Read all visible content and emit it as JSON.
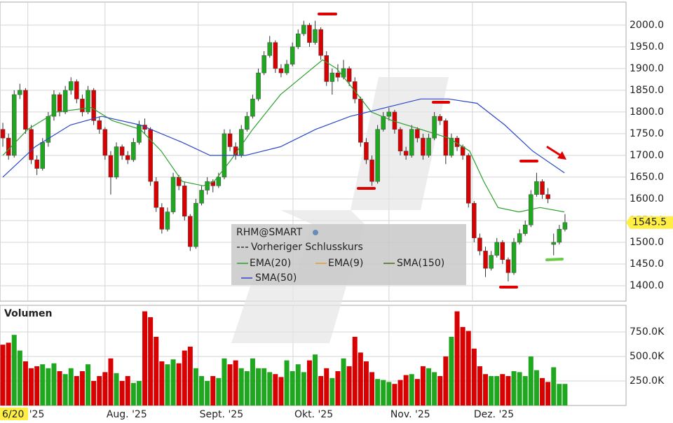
{
  "chart_data": [
    {
      "type": "candlestick",
      "xlim": [
        -0.5,
        109.75
      ],
      "ylim": [
        1364.5,
        2053
      ],
      "yticks": [
        {
          "value": 1400,
          "label": "1400.0"
        },
        {
          "value": 1450,
          "label": "1450.0"
        },
        {
          "value": 1500,
          "label": "1500.0"
        },
        {
          "value": 1550,
          "label": "1550.0"
        },
        {
          "value": 1600,
          "label": "1600.0"
        },
        {
          "value": 1650,
          "label": "1650.0"
        },
        {
          "value": 1700,
          "label": "1700.0"
        },
        {
          "value": 1750,
          "label": "1750.0"
        },
        {
          "value": 1800,
          "label": "1800.0"
        },
        {
          "value": 1850,
          "label": "1850.0"
        },
        {
          "value": 1900,
          "label": "1900.0"
        },
        {
          "value": 1950,
          "label": "1950.0"
        },
        {
          "value": 2000,
          "label": "2000.0"
        }
      ],
      "xticks": [
        {
          "value": 4.4,
          "label": "'25"
        },
        {
          "value": 18,
          "label": "Aug. '25"
        },
        {
          "value": 34.4,
          "label": "Sept. '25"
        },
        {
          "value": 51.1,
          "label": "Okt. '25"
        },
        {
          "value": 68,
          "label": "Nov. '25"
        },
        {
          "value": 82.7,
          "label": "Dez. '25"
        }
      ],
      "cursor_label": "6/20",
      "grid": true,
      "series": [
        {
          "name": "RHM@SMART",
          "up_color": "#1fa81f",
          "down_color": "#d80000",
          "values": [
            [
              1760,
              1775,
              1720,
              1740
            ],
            [
              1740,
              1750,
              1690,
              1700
            ],
            [
              1700,
              1850,
              1695,
              1840
            ],
            [
              1840,
              1865,
              1830,
              1850
            ],
            [
              1850,
              1855,
              1750,
              1760
            ],
            [
              1760,
              1770,
              1680,
              1690
            ],
            [
              1690,
              1700,
              1655,
              1670
            ],
            [
              1670,
              1740,
              1665,
              1730
            ],
            [
              1730,
              1800,
              1720,
              1790
            ],
            [
              1790,
              1850,
              1780,
              1840
            ],
            [
              1840,
              1845,
              1790,
              1800
            ],
            [
              1800,
              1860,
              1795,
              1850
            ],
            [
              1850,
              1880,
              1840,
              1870
            ],
            [
              1870,
              1875,
              1820,
              1830
            ],
            [
              1830,
              1840,
              1790,
              1800
            ],
            [
              1800,
              1860,
              1795,
              1850
            ],
            [
              1850,
              1855,
              1770,
              1780
            ],
            [
              1780,
              1790,
              1750,
              1760
            ],
            [
              1760,
              1765,
              1690,
              1700
            ],
            [
              1700,
              1710,
              1610,
              1650
            ],
            [
              1650,
              1730,
              1645,
              1720
            ],
            [
              1720,
              1725,
              1690,
              1700
            ],
            [
              1700,
              1710,
              1680,
              1690
            ],
            [
              1690,
              1740,
              1685,
              1730
            ],
            [
              1730,
              1780,
              1725,
              1770
            ],
            [
              1770,
              1785,
              1750,
              1760
            ],
            [
              1760,
              1765,
              1630,
              1640
            ],
            [
              1640,
              1650,
              1570,
              1580
            ],
            [
              1580,
              1590,
              1520,
              1530
            ],
            [
              1530,
              1580,
              1525,
              1570
            ],
            [
              1570,
              1660,
              1565,
              1650
            ],
            [
              1650,
              1655,
              1620,
              1630
            ],
            [
              1630,
              1640,
              1550,
              1560
            ],
            [
              1560,
              1565,
              1480,
              1490
            ],
            [
              1490,
              1600,
              1485,
              1590
            ],
            [
              1590,
              1630,
              1585,
              1620
            ],
            [
              1620,
              1650,
              1610,
              1640
            ],
            [
              1640,
              1645,
              1615,
              1630
            ],
            [
              1630,
              1660,
              1625,
              1650
            ],
            [
              1650,
              1760,
              1645,
              1750
            ],
            [
              1750,
              1760,
              1710,
              1720
            ],
            [
              1720,
              1730,
              1690,
              1700
            ],
            [
              1700,
              1770,
              1695,
              1760
            ],
            [
              1760,
              1800,
              1755,
              1790
            ],
            [
              1790,
              1840,
              1785,
              1830
            ],
            [
              1830,
              1900,
              1825,
              1890
            ],
            [
              1890,
              1940,
              1885,
              1930
            ],
            [
              1930,
              1975,
              1925,
              1960
            ],
            [
              1960,
              1965,
              1890,
              1900
            ],
            [
              1900,
              1910,
              1880,
              1890
            ],
            [
              1890,
              1920,
              1885,
              1910
            ],
            [
              1910,
              1960,
              1905,
              1950
            ],
            [
              1950,
              1990,
              1945,
              1980
            ],
            [
              1980,
              2010,
              1975,
              2000
            ],
            [
              2000,
              2005,
              1950,
              1960
            ],
            [
              1960,
              2010,
              1955,
              1990
            ],
            [
              1990,
              1995,
              1920,
              1930
            ],
            [
              1930,
              1940,
              1860,
              1870
            ],
            [
              1870,
              1900,
              1840,
              1890
            ],
            [
              1890,
              1910,
              1870,
              1880
            ],
            [
              1880,
              1920,
              1875,
              1900
            ],
            [
              1900,
              1905,
              1860,
              1870
            ],
            [
              1870,
              1880,
              1820,
              1830
            ],
            [
              1830,
              1835,
              1720,
              1730
            ],
            [
              1730,
              1740,
              1680,
              1690
            ],
            [
              1690,
              1700,
              1630,
              1640
            ],
            [
              1640,
              1770,
              1635,
              1760
            ],
            [
              1760,
              1800,
              1755,
              1790
            ],
            [
              1790,
              1810,
              1780,
              1800
            ],
            [
              1800,
              1805,
              1750,
              1760
            ],
            [
              1760,
              1765,
              1700,
              1710
            ],
            [
              1710,
              1720,
              1690,
              1700
            ],
            [
              1700,
              1770,
              1695,
              1760
            ],
            [
              1760,
              1765,
              1730,
              1740
            ],
            [
              1740,
              1750,
              1690,
              1700
            ],
            [
              1700,
              1750,
              1695,
              1740
            ],
            [
              1740,
              1800,
              1735,
              1790
            ],
            [
              1790,
              1795,
              1770,
              1780
            ],
            [
              1780,
              1785,
              1680,
              1700
            ],
            [
              1700,
              1750,
              1695,
              1740
            ],
            [
              1740,
              1745,
              1710,
              1720
            ],
            [
              1720,
              1725,
              1690,
              1700
            ],
            [
              1700,
              1705,
              1580,
              1590
            ],
            [
              1590,
              1595,
              1500,
              1510
            ],
            [
              1510,
              1520,
              1470,
              1480
            ],
            [
              1480,
              1490,
              1420,
              1440
            ],
            [
              1440,
              1480,
              1435,
              1470
            ],
            [
              1470,
              1510,
              1465,
              1500
            ],
            [
              1500,
              1505,
              1450,
              1460
            ],
            [
              1460,
              1465,
              1410,
              1430
            ],
            [
              1430,
              1510,
              1425,
              1500
            ],
            [
              1500,
              1530,
              1495,
              1520
            ],
            [
              1520,
              1550,
              1515,
              1540
            ],
            [
              1540,
              1620,
              1535,
              1610
            ],
            [
              1610,
              1660,
              1605,
              1640
            ],
            [
              1640,
              1645,
              1600,
              1610
            ],
            [
              1610,
              1625,
              1590,
              1600
            ],
            [
              1495,
              1520,
              1470,
              1500
            ],
            [
              1500,
              1540,
              1495,
              1530
            ],
            [
              1530,
              1565,
              1525,
              1545.5
            ]
          ]
        },
        {
          "name": "EMA(20)",
          "color": "#2ca02c",
          "x": [
            0,
            4.4,
            9.4,
            15.6,
            19.3,
            24.2,
            27.9,
            31.6,
            35.3,
            37.2,
            40.2,
            44,
            48.9,
            52.6,
            56.3,
            58.8,
            62.5,
            64.9,
            68.6,
            73.6,
            78.5,
            82.2,
            84.7,
            87.2,
            90.9,
            94.6,
            98.9
          ],
          "values": [
            1700,
            1760,
            1800,
            1810,
            1780,
            1760,
            1710,
            1640,
            1630,
            1640,
            1690,
            1760,
            1840,
            1880,
            1920,
            1900,
            1840,
            1800,
            1780,
            1760,
            1740,
            1710,
            1640,
            1580,
            1570,
            1580,
            1570
          ]
        },
        {
          "name": "SMA(50)",
          "color": "#2948c8",
          "x": [
            0,
            5.7,
            11.9,
            17.4,
            24.2,
            31.6,
            36.5,
            42.7,
            48.9,
            55.1,
            61.2,
            67.4,
            73.6,
            78.5,
            83.5,
            88.4,
            93.3,
            98.9
          ],
          "values": [
            1650,
            1720,
            1770,
            1790,
            1770,
            1730,
            1700,
            1700,
            1720,
            1760,
            1790,
            1810,
            1830,
            1830,
            1820,
            1770,
            1710,
            1660
          ]
        }
      ],
      "legend_extra": [
        {
          "name": "Vorheriger Schlusskurs",
          "color": "#333333"
        },
        {
          "name": "EMA(9)",
          "color": "#e0a030"
        },
        {
          "name": "SMA(150)",
          "color": "#4b6b20"
        }
      ]
    },
    {
      "type": "bar",
      "title": "Volumen",
      "ylim": [
        0,
        1021000
      ],
      "yticks": [
        {
          "value": 250000,
          "label": "250.0K"
        },
        {
          "value": 500000,
          "label": "500.0K"
        },
        {
          "value": 750000,
          "label": "750.0K"
        }
      ],
      "values": [
        620000,
        640000,
        720000,
        560000,
        450000,
        380000,
        400000,
        420000,
        380000,
        430000,
        350000,
        320000,
        380000,
        300000,
        350000,
        420000,
        250000,
        300000,
        340000,
        480000,
        330000,
        250000,
        300000,
        230000,
        250000,
        960000,
        900000,
        700000,
        450000,
        420000,
        470000,
        430000,
        560000,
        600000,
        380000,
        300000,
        250000,
        300000,
        280000,
        480000,
        420000,
        460000,
        380000,
        350000,
        480000,
        380000,
        380000,
        340000,
        320000,
        290000,
        460000,
        350000,
        420000,
        340000,
        460000,
        520000,
        300000,
        380000,
        280000,
        350000,
        480000,
        400000,
        700000,
        540000,
        450000,
        340000,
        270000,
        260000,
        240000,
        220000,
        260000,
        310000,
        320000,
        270000,
        400000,
        380000,
        340000,
        300000,
        500000,
        700000,
        960000,
        800000,
        760000,
        580000,
        400000,
        320000,
        300000,
        300000,
        320000,
        300000,
        350000,
        340000,
        300000,
        500000,
        360000,
        280000,
        240000,
        390000,
        220000,
        220000
      ]
    }
  ]
}
